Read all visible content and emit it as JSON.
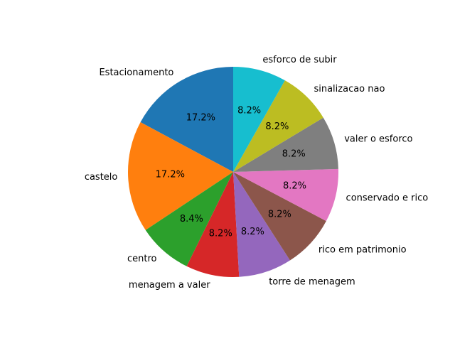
{
  "chart_data": {
    "type": "pie",
    "title": "",
    "labels": [
      "Estacionamento",
      "castelo",
      "centro",
      "menagem a valer",
      "torre de menagem",
      "rico em patrimonio",
      "conservado e rico",
      "valer o esforco",
      "sinalizacao nao",
      "esforco de subir"
    ],
    "values": [
      17.2,
      17.2,
      8.4,
      8.2,
      8.2,
      8.2,
      8.2,
      8.2,
      8.2,
      8.2
    ],
    "percent_labels": [
      "17.2%",
      "17.2%",
      "8.4%",
      "8.2%",
      "8.2%",
      "8.2%",
      "8.2%",
      "8.2%",
      "8.2%",
      "8.2%"
    ],
    "colors": [
      "#1f77b4",
      "#ff7f0e",
      "#2ca02c",
      "#d62728",
      "#9467bd",
      "#8c564b",
      "#e377c2",
      "#7f7f7f",
      "#bcbd22",
      "#17becf"
    ],
    "start_angle_deg": 90,
    "direction": "counterclockwise"
  }
}
